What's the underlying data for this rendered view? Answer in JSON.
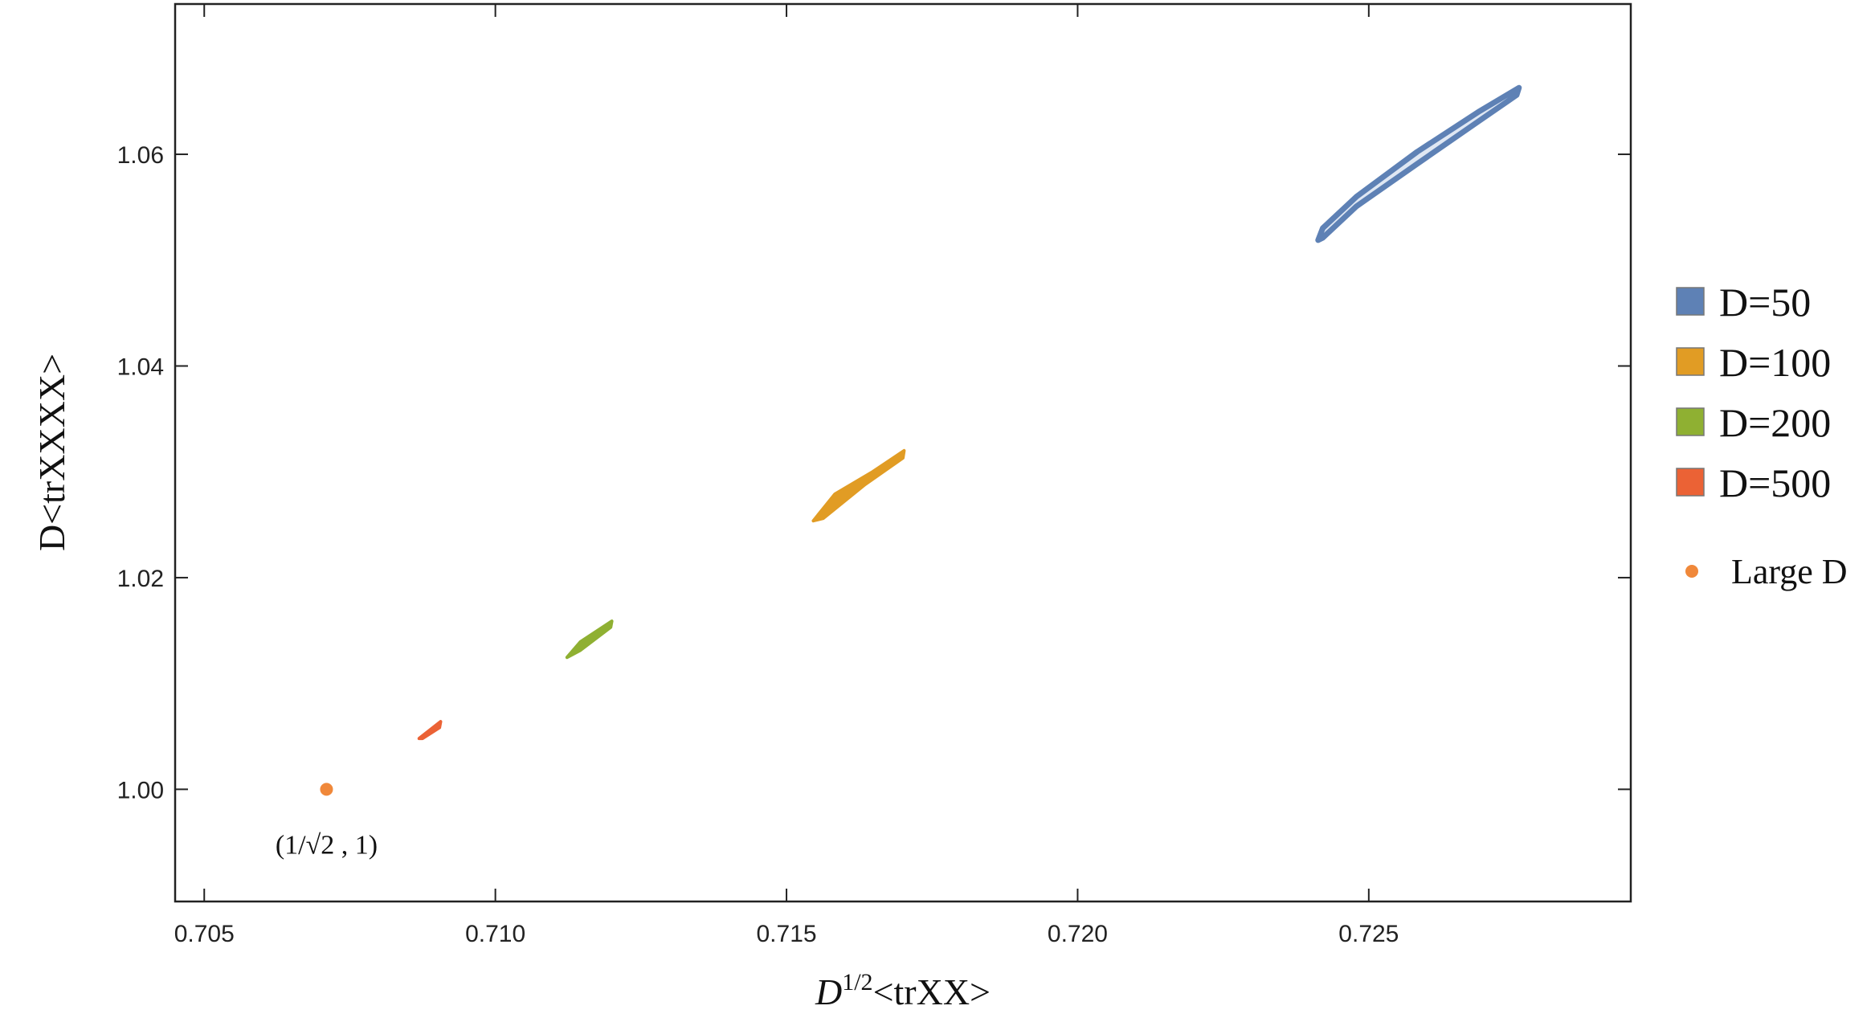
{
  "chart_data": {
    "type": "region",
    "x_label": [
      "D",
      "1/2",
      "<trXX>"
    ],
    "y_label": "D<trXXXX>",
    "xlim": [
      0.7045,
      0.7295
    ],
    "ylim": [
      0.9894,
      1.0742
    ],
    "xticks": [
      0.705,
      {
        "value": 0.71,
        "label": "0.710"
      },
      0.715,
      {
        "value": 0.72,
        "label": "0.720"
      },
      0.725
    ],
    "yticks": [
      {
        "value": 1,
        "label": "1.00"
      },
      1.02,
      1.04,
      1.06
    ],
    "series": [
      {
        "name": "D=50",
        "color": "#5e81b5",
        "x": [
          0.72413,
          0.72421,
          0.72479,
          0.72583,
          0.72688,
          0.72758,
          0.72754,
          0.72688,
          0.72583,
          0.72479,
          0.72421
        ],
        "y": [
          1.05189,
          1.05303,
          1.056,
          1.06023,
          1.064,
          1.06629,
          1.0656,
          1.06309,
          1.05909,
          1.05509,
          1.05211
        ]
      },
      {
        "name": "D=100",
        "color": "#e19c24",
        "x": [
          0.71546,
          0.71583,
          0.71646,
          0.71702,
          0.717,
          0.71635,
          0.71563
        ],
        "y": [
          1.02537,
          1.02789,
          1.02994,
          1.032,
          1.03131,
          1.0288,
          1.0256
        ]
      },
      {
        "name": "D=200",
        "color": "#8fb032",
        "x": [
          0.71123,
          0.71146,
          0.712,
          0.71198,
          0.71146
        ],
        "y": [
          1.01246,
          1.01394,
          1.01589,
          1.01531,
          1.01314
        ]
      },
      {
        "name": "D=500",
        "color": "#eb6235",
        "x": [
          0.70869,
          0.70906,
          0.70904,
          0.70875
        ],
        "y": [
          1.0048,
          1.0064,
          1.00583,
          1.0048
        ]
      }
    ],
    "point": {
      "name": "Large D",
      "color": "#f0883a",
      "x": [
        0.7071
      ],
      "y": [
        1
      ],
      "annotation": "(1/√2 , 1)"
    }
  }
}
